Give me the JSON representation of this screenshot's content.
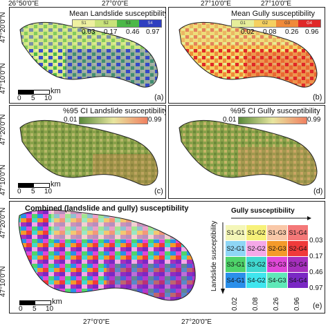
{
  "coords": {
    "top_lon_left": "26°50'0\"E",
    "top_lon_mid": "27°0'0\"E",
    "top_lon_right": "27°10'0\"E",
    "bottom_lon_mid": "27°0'0\"E",
    "bottom_lon_right": "27°20'0\"E",
    "lat_20": "47°20'0\"N",
    "lat_10": "47°10'0\"N"
  },
  "panels": {
    "a": {
      "title": "Mean Landslide susceptibility",
      "classes": [
        "S1",
        "S2",
        "S3",
        "S4"
      ],
      "breaks": [
        "0.03",
        "0.17",
        "0.46",
        "0.97"
      ],
      "colors": [
        "#eef0a0",
        "#c8e27a",
        "#4cb848",
        "#2f3fc0"
      ],
      "label": "(a)"
    },
    "b": {
      "title": "Mean Gully susceptibility",
      "classes": [
        "G1",
        "G2",
        "G3",
        "G4"
      ],
      "breaks": [
        "0.02",
        "0.08",
        "0.26",
        "0.96"
      ],
      "colors": [
        "#e6ee9a",
        "#f5d060",
        "#f08a3a",
        "#e02828"
      ],
      "label": "(b)"
    },
    "c": {
      "title": "%95 CI Landslide susceptibility",
      "min": "0.01",
      "max": "0.99",
      "label": "(c)"
    },
    "d": {
      "title": "%95 CI Gully susceptibility",
      "min": "0.01",
      "max": "0.99",
      "label": "(d)"
    },
    "e": {
      "title": "Combined (landslide and gully) susceptibility",
      "label": "(e)"
    }
  },
  "scalebar": {
    "zero": "0",
    "five": "5",
    "ten": "10",
    "unit": "km"
  },
  "matrix": {
    "x_title": "Gully susceptibility",
    "y_title": "Landslide susceptibility",
    "row_breaks": [
      "0.03",
      "0.17",
      "0.46",
      "0.97"
    ],
    "col_breaks": [
      "0.02",
      "0.08",
      "0.26",
      "0.96"
    ],
    "cells": [
      {
        "label": "S1-G1",
        "color": "#f4f6b8"
      },
      {
        "label": "S1-G2",
        "color": "#f7f17a"
      },
      {
        "label": "S1-G3",
        "color": "#f9c8a8"
      },
      {
        "label": "S1-G4",
        "color": "#f47878"
      },
      {
        "label": "S2-G1",
        "color": "#8ed6f5"
      },
      {
        "label": "S2-G2",
        "color": "#f5a8e8"
      },
      {
        "label": "S2-G3",
        "color": "#f49a2a"
      },
      {
        "label": "S2-G4",
        "color": "#f03a3a"
      },
      {
        "label": "S3-G1",
        "color": "#4fd46a"
      },
      {
        "label": "S3-G2",
        "color": "#40d8d0"
      },
      {
        "label": "S3-G3",
        "color": "#e048d8"
      },
      {
        "label": "S3-G4",
        "color": "#a62fbd"
      },
      {
        "label": "S4-G1",
        "color": "#2a8fea"
      },
      {
        "label": "S4-G2",
        "color": "#3fe6ee"
      },
      {
        "label": "S4-G3",
        "color": "#5fe8b8"
      },
      {
        "label": "S4-G4",
        "color": "#7a28c4"
      }
    ]
  },
  "ci_gradient": {
    "from": "#5a8a3a",
    "mid": "#e8e6a0",
    "to": "#f08060"
  }
}
